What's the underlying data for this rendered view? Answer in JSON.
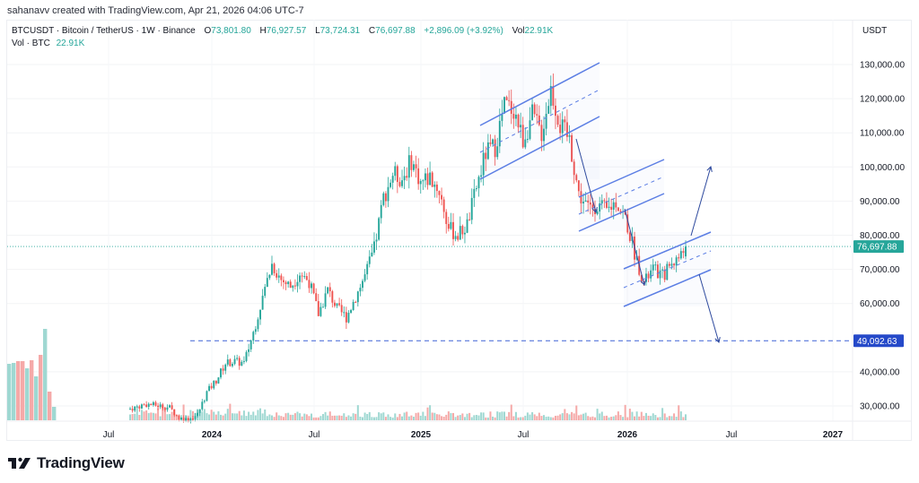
{
  "credit": "sahanavv created with TradingView.com, Apr 21, 2026 04:06 UTC-7",
  "legend": {
    "symbol_line": "BTCUSDT · Bitcoin / TetherUS · 1W · Binance",
    "open_label": "O",
    "open": "73,801.80",
    "high_label": "H",
    "high": "76,927.57",
    "low_label": "L",
    "low": "73,724.31",
    "close_label": "C",
    "close": "76,697.88",
    "change": "+2,896.09 (+3.92%)",
    "vol_label": "Vol",
    "vol": "22.91K",
    "vol_line_label": "Vol · BTC",
    "vol_line_value": "22.91K"
  },
  "price_axis": {
    "currency": "USDT",
    "ticks": [
      "130,000.00",
      "120,000.00",
      "110,000.00",
      "100,000.00",
      "90,000.00",
      "80,000.00",
      "70,000.00",
      "60,000.00",
      "40,000.00",
      "30,000.00"
    ],
    "last_price_label": "76,697.88",
    "level_label": "49,092.63"
  },
  "time_axis": {
    "ticks": [
      {
        "label": "Jul",
        "bold": false
      },
      {
        "label": "2024",
        "bold": true
      },
      {
        "label": "Jul",
        "bold": false
      },
      {
        "label": "2025",
        "bold": true
      },
      {
        "label": "Jul",
        "bold": false
      },
      {
        "label": "2026",
        "bold": true
      },
      {
        "label": "Jul",
        "bold": false
      },
      {
        "label": "2027",
        "bold": true
      }
    ]
  },
  "brand": "TradingView",
  "colors": {
    "up": "#26a69a",
    "down": "#ef5350",
    "up_vol": "#9fd8d2",
    "down_vol": "#f5a9a8",
    "channel": "#5b7ee5",
    "arrow": "#2e4a9e",
    "level": "#3f62d6",
    "last_price_bg": "#26a69a",
    "level_bg": "#2549c9"
  },
  "chart_data": {
    "type": "candlestick",
    "title": "BTCUSDT · Bitcoin / TetherUS · 1W · Binance",
    "ylabel": "USDT",
    "ylim": [
      25000,
      135000
    ],
    "grid": true,
    "x_ticks": [
      "Jul 2023",
      "2024",
      "Jul 2024",
      "2025",
      "Jul 2025",
      "2026",
      "Jul 2026",
      "2027"
    ],
    "last_candle": {
      "open": 73801.8,
      "high": 76927.57,
      "low": 73724.31,
      "close": 76697.88,
      "change": 2896.09,
      "change_pct": 3.92,
      "volume": "22.91K"
    },
    "horizontal_levels": [
      {
        "price": 49092.63,
        "style": "dashed",
        "label": "49,092.63"
      },
      {
        "price": 76697.88,
        "style": "dotted",
        "label": "76,697.88 (last price)"
      }
    ],
    "key_points": [
      {
        "period": "mid 2023",
        "price": 30000
      },
      {
        "period": "Mar 2024",
        "price": 73000
      },
      {
        "period": "Aug 2024 low",
        "price": 49000
      },
      {
        "period": "Dec 2024",
        "price": 106000
      },
      {
        "period": "Apr 2025 low",
        "price": 75000
      },
      {
        "period": "Oct 2025 high",
        "price": 126000
      },
      {
        "period": "Dec 2025",
        "price": 87000
      },
      {
        "period": "Feb 2026 low",
        "price": 60000
      },
      {
        "period": "Apr 2026",
        "price": 76697.88
      }
    ],
    "annotations": [
      {
        "type": "parallel_channel",
        "period": "Jun-Nov 2025",
        "from": [
          100000,
          120000
        ],
        "to": [
          113000,
          131000
        ]
      },
      {
        "type": "parallel_channel",
        "period": "Dec 2025-Jan 2026",
        "from": [
          78000,
          90000
        ],
        "to": [
          92000,
          103000
        ]
      },
      {
        "type": "parallel_channel",
        "period": "Feb-Apr 2026",
        "from": [
          60000,
          72000
        ],
        "to": [
          70000,
          81000
        ]
      },
      {
        "type": "arrow",
        "direction": "up",
        "target": 101000
      },
      {
        "type": "arrow",
        "direction": "down",
        "target": 49092.63
      }
    ]
  }
}
